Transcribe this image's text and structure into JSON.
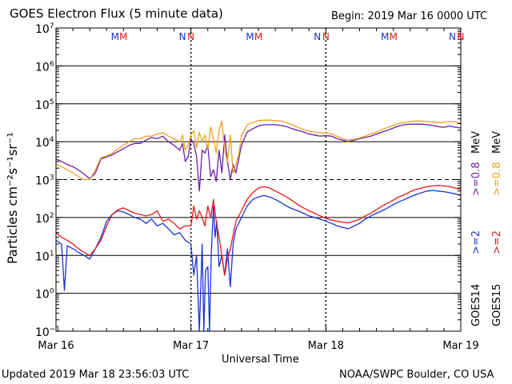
{
  "header": {
    "title": "GOES Electron Flux (5 minute data)",
    "begin": "Begin: 2019 Mar 16 0000 UTC"
  },
  "footer": {
    "updated": "Updated 2019 Mar 18 23:56:03 UTC",
    "credit": "NOAA/SWPC Boulder, CO USA"
  },
  "colors": {
    "goes14_high": "#6a1fa8",
    "goes15_high": "#f0a020",
    "goes14_low": "#1a32d8",
    "goes15_low": "#e81818"
  },
  "chart_data": {
    "type": "line",
    "xlabel": "Universal Time",
    "ylabel": "Particles cm⁻²s⁻¹sr⁻¹",
    "xlim": [
      0,
      72
    ],
    "x_unit": "hours since 2019 Mar 16 0000 UTC",
    "y_scale": "log",
    "ylim": [
      0.1,
      10000000
    ],
    "x_ticks": [
      {
        "x": 0,
        "label": "Mar 16"
      },
      {
        "x": 24,
        "label": "Mar 17"
      },
      {
        "x": 48,
        "label": "Mar 18"
      },
      {
        "x": 72,
        "label": "Mar 19"
      }
    ],
    "y_ticks": [
      {
        "exp": "7"
      },
      {
        "exp": "6"
      },
      {
        "exp": "5"
      },
      {
        "exp": "4"
      },
      {
        "exp": "3"
      },
      {
        "exp": "2"
      },
      {
        "exp": "1"
      },
      {
        "exp": "0"
      },
      {
        "exp": "−1"
      }
    ],
    "threshold": 1000,
    "markers": [
      {
        "x": 10.5,
        "letter": "M",
        "color": "#1a32d8"
      },
      {
        "x": 12.0,
        "letter": "M",
        "color": "#e81818"
      },
      {
        "x": 22.5,
        "letter": "N",
        "color": "#1a32d8"
      },
      {
        "x": 24.0,
        "letter": "N",
        "color": "#e81818"
      },
      {
        "x": 34.5,
        "letter": "M",
        "color": "#1a32d8"
      },
      {
        "x": 36.0,
        "letter": "M",
        "color": "#e81818"
      },
      {
        "x": 46.5,
        "letter": "N",
        "color": "#1a32d8"
      },
      {
        "x": 48.0,
        "letter": "N",
        "color": "#e81818"
      },
      {
        "x": 58.5,
        "letter": "M",
        "color": "#1a32d8"
      },
      {
        "x": 60.0,
        "letter": "M",
        "color": "#e81818"
      },
      {
        "x": 70.5,
        "letter": "N",
        "color": "#1a32d8"
      },
      {
        "x": 72.0,
        "letter": "N",
        "color": "#e81818"
      }
    ],
    "legend": {
      "goes14_label": "GOES14",
      "goes15_label": "GOES15",
      "low_energy": ">=2",
      "high_energy": ">=0.8",
      "unit": "MeV"
    },
    "series": [
      {
        "name": "GOES14 >=0.8 MeV",
        "color": "#6a1fa8",
        "x": [
          0,
          1,
          2,
          3,
          4,
          5,
          6,
          7,
          8,
          9,
          10,
          11,
          12,
          13,
          14,
          15,
          16,
          17,
          18,
          19,
          20,
          21,
          22,
          22.5,
          23,
          23.5,
          24,
          24.5,
          25,
          25.5,
          26,
          26.5,
          27,
          27.5,
          28,
          28.5,
          29,
          29.5,
          30,
          30.5,
          31,
          31.5,
          32,
          32.5,
          33,
          33.5,
          34,
          35,
          36,
          37,
          38,
          39,
          40,
          41,
          42,
          43,
          44,
          45,
          46,
          47,
          48,
          49,
          50,
          51,
          52,
          53,
          54,
          55,
          56,
          57,
          58,
          59,
          60,
          61,
          62,
          63,
          64,
          65,
          66,
          67,
          68,
          69,
          70,
          71,
          72
        ],
        "y": [
          3500,
          3000,
          2500,
          2200,
          1800,
          1400,
          1050,
          1500,
          3500,
          4000,
          4500,
          5500,
          6500,
          8000,
          9000,
          9000,
          11000,
          13000,
          12000,
          14000,
          10000,
          8000,
          6000,
          9000,
          3000,
          4000,
          12000,
          9000,
          4000,
          500,
          6000,
          5000,
          8000,
          1200,
          1800,
          900,
          6000,
          1500,
          15000,
          3000,
          1000,
          2500,
          1500,
          3500,
          8000,
          12000,
          18000,
          22000,
          26000,
          28000,
          28000,
          28000,
          27000,
          25000,
          22000,
          20000,
          18000,
          16000,
          15000,
          14000,
          14500,
          14000,
          12000,
          11000,
          10000,
          11000,
          12000,
          13000,
          14000,
          16000,
          18000,
          20000,
          23000,
          26000,
          28000,
          29000,
          29000,
          29000,
          28000,
          27000,
          25000,
          24000,
          26000,
          24000,
          23000
        ]
      },
      {
        "name": "GOES15 >=0.8 MeV",
        "color": "#f0a020",
        "x": [
          0,
          1,
          2,
          3,
          4,
          5,
          6,
          7,
          8,
          9,
          10,
          11,
          12,
          13,
          14,
          15,
          16,
          17,
          18,
          19,
          20,
          21,
          22,
          22.5,
          23,
          23.5,
          24,
          24.5,
          25,
          25.5,
          26,
          26.5,
          27,
          27.5,
          28,
          28.5,
          29,
          29.5,
          30,
          30.5,
          31,
          31.5,
          32,
          32.5,
          33,
          33.5,
          34,
          35,
          36,
          37,
          38,
          39,
          40,
          41,
          42,
          43,
          44,
          45,
          46,
          47,
          48,
          49,
          50,
          51,
          52,
          53,
          54,
          55,
          56,
          57,
          58,
          59,
          60,
          61,
          62,
          63,
          64,
          65,
          66,
          67,
          68,
          69,
          70,
          71,
          72
        ],
        "y": [
          2500,
          2200,
          1800,
          1500,
          1200,
          1000,
          1000,
          1800,
          3800,
          4200,
          5000,
          6500,
          8000,
          10000,
          12000,
          12000,
          14000,
          14000,
          16000,
          17000,
          14000,
          12000,
          10000,
          15000,
          6000,
          8000,
          15000,
          20000,
          7000,
          18000,
          10000,
          15000,
          6000,
          25000,
          12000,
          5000,
          20000,
          35000,
          6000,
          3000,
          15000,
          1500,
          2500,
          4500,
          15000,
          20000,
          28000,
          32000,
          36000,
          37000,
          37000,
          36000,
          35000,
          32000,
          28000,
          24000,
          21000,
          19000,
          18000,
          17000,
          17000,
          16000,
          14000,
          12000,
          11000,
          11500,
          12500,
          14000,
          16000,
          18000,
          21000,
          24000,
          27000,
          30000,
          32000,
          34000,
          35000,
          35000,
          34000,
          33000,
          32000,
          32000,
          34000,
          33000,
          31000
        ]
      },
      {
        "name": "GOES14 >=2 MeV",
        "color": "#1a32d8",
        "x": [
          0,
          1,
          1.5,
          2,
          3,
          4,
          5,
          6,
          7,
          8,
          9,
          10,
          11,
          12,
          13,
          14,
          15,
          16,
          17,
          18,
          19,
          20,
          21,
          22,
          23,
          24,
          24.5,
          25,
          25.5,
          26,
          26.3,
          26.6,
          27,
          27.3,
          27.6,
          28,
          28.3,
          28.6,
          29,
          29.5,
          30,
          30.5,
          31,
          31.5,
          32,
          33,
          34,
          35,
          36,
          37,
          38,
          39,
          40,
          41,
          42,
          43,
          44,
          45,
          46,
          47,
          48,
          49,
          50,
          51,
          52,
          53,
          54,
          55,
          56,
          57,
          58,
          59,
          60,
          61,
          62,
          63,
          64,
          65,
          66,
          67,
          68,
          69,
          70,
          71,
          72
        ],
        "y": [
          25,
          20,
          1.2,
          18,
          15,
          12,
          10,
          8,
          15,
          30,
          80,
          120,
          150,
          140,
          120,
          100,
          90,
          70,
          90,
          60,
          70,
          50,
          35,
          40,
          25,
          20,
          3,
          10,
          0.1,
          20,
          0.1,
          4,
          5,
          0.1,
          10,
          200,
          30,
          80,
          5,
          10,
          3,
          15,
          1.5,
          20,
          50,
          100,
          200,
          300,
          350,
          380,
          350,
          300,
          250,
          200,
          170,
          150,
          130,
          110,
          100,
          90,
          80,
          70,
          60,
          55,
          50,
          60,
          70,
          90,
          110,
          130,
          150,
          180,
          220,
          260,
          300,
          350,
          400,
          450,
          500,
          520,
          500,
          480,
          450,
          420,
          380
        ]
      },
      {
        "name": "GOES15 >=2 MeV",
        "color": "#e81818",
        "x": [
          0,
          1,
          2,
          3,
          4,
          5,
          6,
          7,
          8,
          9,
          10,
          11,
          12,
          13,
          14,
          15,
          16,
          17,
          18,
          19,
          20,
          21,
          22,
          23,
          24,
          24.5,
          25,
          25.5,
          26,
          26.5,
          27,
          27.5,
          28,
          28.5,
          29,
          29.5,
          30,
          30.5,
          31,
          32,
          33,
          34,
          35,
          36,
          37,
          38,
          39,
          40,
          41,
          42,
          43,
          44,
          45,
          46,
          47,
          48,
          49,
          50,
          51,
          52,
          53,
          54,
          55,
          56,
          57,
          58,
          59,
          60,
          61,
          62,
          63,
          64,
          65,
          66,
          67,
          68,
          69,
          70,
          71,
          72
        ],
        "y": [
          40,
          30,
          25,
          20,
          15,
          12,
          10,
          15,
          25,
          60,
          120,
          160,
          180,
          150,
          130,
          120,
          110,
          120,
          150,
          80,
          90,
          70,
          50,
          60,
          60,
          200,
          90,
          150,
          100,
          60,
          200,
          100,
          300,
          80,
          30,
          10,
          3,
          8,
          15,
          80,
          150,
          300,
          450,
          600,
          650,
          600,
          500,
          420,
          350,
          280,
          220,
          180,
          150,
          130,
          110,
          95,
          85,
          80,
          75,
          72,
          80,
          90,
          110,
          130,
          160,
          200,
          240,
          290,
          350,
          400,
          480,
          550,
          600,
          650,
          680,
          700,
          680,
          650,
          600,
          550
        ]
      }
    ]
  }
}
